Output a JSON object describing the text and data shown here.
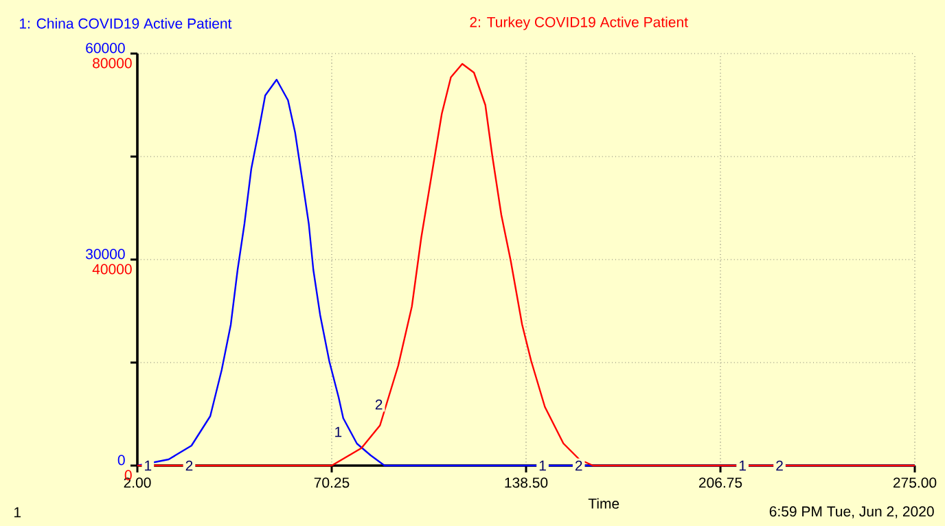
{
  "chart_data": {
    "type": "line",
    "xlabel": "Time",
    "legend": "top",
    "grid": true,
    "marker": "none",
    "line_style": "solid",
    "xlim": [
      2,
      275
    ],
    "xticks": [
      {
        "value": 2,
        "label": "2.00"
      },
      {
        "value": 70.25,
        "label": "70.25"
      },
      {
        "value": 138.5,
        "label": "138.50"
      },
      {
        "value": 206.75,
        "label": "206.75"
      },
      {
        "value": 275,
        "label": "275.00"
      }
    ],
    "ylim": [
      0,
      60000
    ],
    "yticks": [
      0,
      {
        "value": 15000,
        "label": null
      },
      30000,
      {
        "value": 45000,
        "label": null
      },
      60000
    ],
    "y2lim": [
      0,
      80000
    ],
    "y2ticks": [
      0,
      40000,
      80000
    ],
    "series": [
      {
        "name": "1: China COVID19 Active Patient",
        "color": "#0000ff",
        "x": [
          2,
          13,
          21,
          27.6,
          31.6,
          34.8,
          37.2,
          39.6,
          42,
          44.5,
          46.9,
          50.9,
          54.9,
          57.4,
          59.8,
          62.2,
          63.8,
          66.2,
          69.4,
          72.7,
          74.3,
          79.1,
          83.9,
          88.8,
          275
        ],
        "values": [
          0,
          900,
          2900,
          7200,
          13900,
          20500,
          28500,
          35200,
          43200,
          48500,
          53900,
          56200,
          53200,
          48500,
          41900,
          35200,
          28500,
          21900,
          15200,
          9900,
          6900,
          3200,
          1500,
          0,
          0
        ]
      },
      {
        "name": "2: Turkey  COVID19 Active Patient",
        "color": "#ff0000",
        "axis": "y2",
        "x": [
          2,
          70.25,
          80.7,
          87.2,
          93.6,
          98.4,
          101.7,
          106.5,
          108.9,
          112.1,
          116.1,
          120.2,
          124.2,
          126.6,
          129.8,
          133.1,
          137.1,
          140.3,
          145.1,
          151.6,
          157.2,
          162,
          275
        ],
        "values": [
          0,
          0,
          3400,
          7800,
          19400,
          30900,
          44300,
          60300,
          68300,
          75400,
          78000,
          76300,
          70000,
          60300,
          48700,
          39800,
          27400,
          20300,
          11400,
          4300,
          1200,
          0,
          0
        ]
      }
    ],
    "annotations": [
      "1",
      "6:59 PM   Tue, Jun 2, 2020",
      {
        "text": "1",
        "x": 5.7,
        "y": 0
      },
      {
        "text": "1",
        "x": 75.7,
        "y": 4900
      },
      {
        "text": "1",
        "x": 144.3,
        "y": 0
      },
      {
        "text": "1",
        "x": 214.5,
        "y": 0
      },
      {
        "text": "2",
        "x": 20.2,
        "y": 0
      },
      {
        "text": "2",
        "x": 90,
        "y": 8900
      },
      {
        "text": "2",
        "x": 157,
        "y": 0
      },
      {
        "text": "2",
        "x": 227.5,
        "y": 0
      }
    ]
  }
}
